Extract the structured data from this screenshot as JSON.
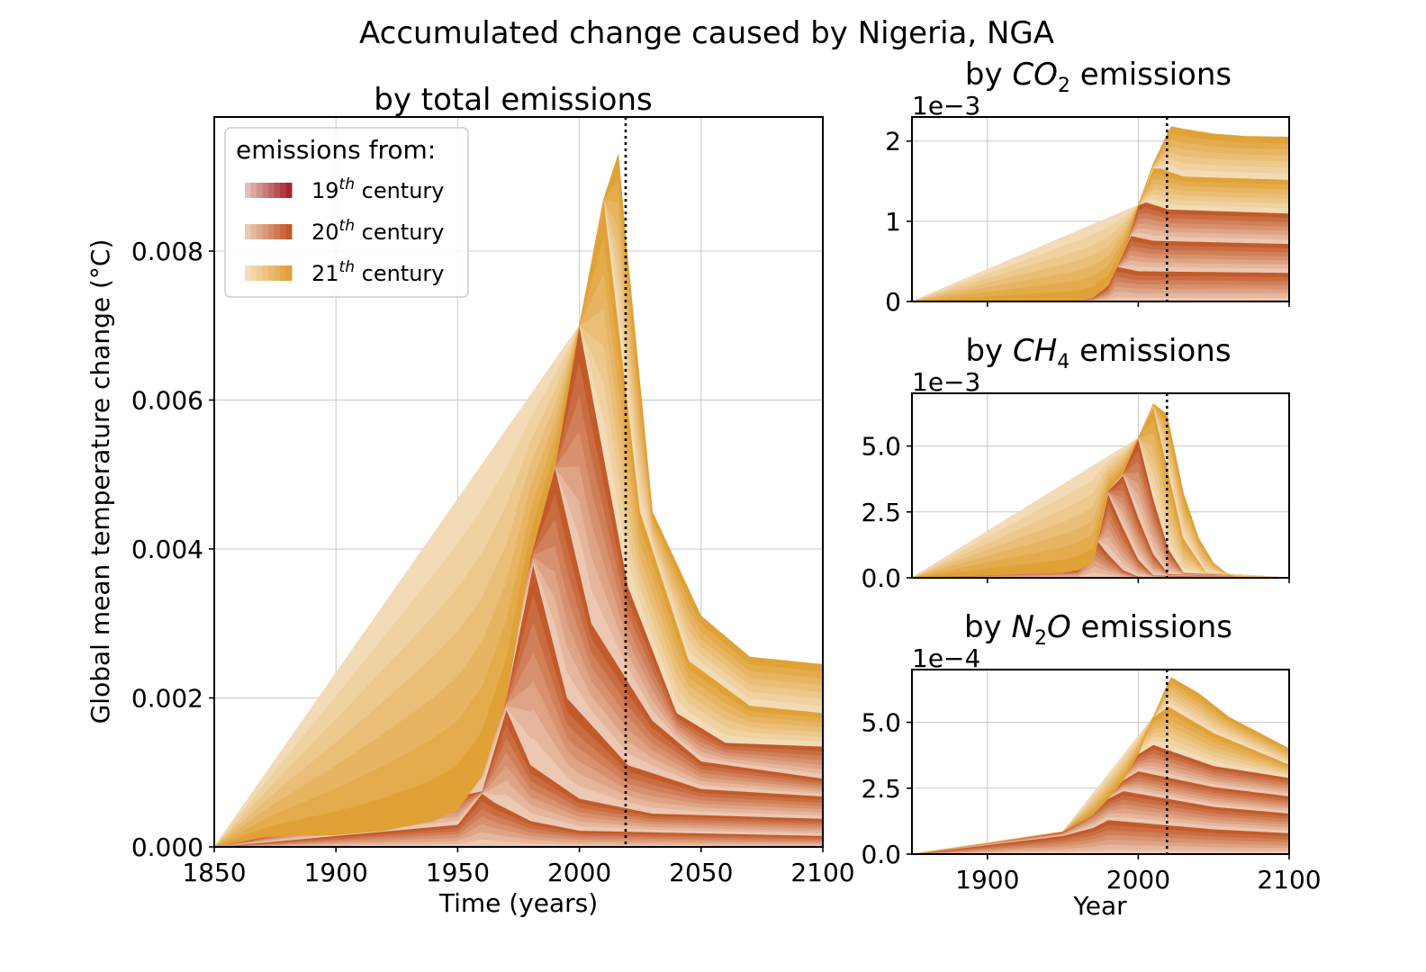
{
  "figure": {
    "title": "Accumulated change caused by Nigeria, NGA",
    "reference_year": 2019
  },
  "colors": {
    "century_19": "#a6262c",
    "century_20": "#c25a2a",
    "century_21": "#e0a137",
    "pale": "#fbf1e6",
    "frame": "#000000",
    "grid": "#c8c8c8"
  },
  "legend": {
    "title": "emissions from:",
    "placement": "upper-left",
    "items": [
      {
        "ordinal": "19",
        "sup": "th",
        "word": " century",
        "color": "#a6262c"
      },
      {
        "ordinal": "20",
        "sup": "th",
        "word": " century",
        "color": "#c25a2a"
      },
      {
        "ordinal": "21",
        "sup": "th",
        "word": " century",
        "color": "#e0a137"
      }
    ]
  },
  "chart_data": [
    {
      "id": "total",
      "type": "area",
      "stacked": true,
      "title": "by total emissions",
      "xlabel": "Time (years)",
      "ylabel": "Global mean temperature change (°C)",
      "xlim": [
        1850,
        2100
      ],
      "ylim": [
        0,
        0.0098
      ],
      "xticks": [
        1850,
        1900,
        1950,
        2000,
        2050,
        2100
      ],
      "xtick_labels": [
        "1850",
        "1900",
        "1950",
        "2000",
        "2050",
        "2100"
      ],
      "yticks": [
        0,
        0.002,
        0.004,
        0.006,
        0.008
      ],
      "ytick_labels": [
        "0.000",
        "0.002",
        "0.004",
        "0.006",
        "0.008"
      ],
      "grid": true,
      "envelope": {
        "x": [
          1850,
          1870,
          1880,
          1900,
          1920,
          1940,
          1950,
          1960,
          1970,
          1980,
          1990,
          2000,
          2010,
          2016,
          2019,
          2030,
          2050,
          2070,
          2100
        ],
        "y": [
          0,
          0.00013,
          0.00015,
          0.00016,
          0.00022,
          0.00035,
          0.0005,
          0.00095,
          0.002,
          0.0039,
          0.0051,
          0.007,
          0.0087,
          0.0093,
          0.0082,
          0.0045,
          0.0031,
          0.00255,
          0.00245
        ]
      },
      "boundaries": [
        {
          "color": "#c25a2a",
          "x": [
            1850,
            1950,
            1960,
            1965,
            1980,
            2000,
            2100
          ],
          "y": [
            0,
            0.0003,
            0.00072,
            0.0006,
            0.00035,
            0.00022,
            0.00015
          ]
        },
        {
          "color": "#c25a2a",
          "x": [
            1850,
            1960,
            1970,
            1980,
            2000,
            2030,
            2100
          ],
          "y": [
            0,
            0.00075,
            0.00185,
            0.0011,
            0.00065,
            0.00045,
            0.00038
          ]
        },
        {
          "color": "#c25a2a",
          "x": [
            1850,
            1970,
            1981,
            1995,
            2020,
            2050,
            2100
          ],
          "y": [
            0,
            0.002,
            0.0038,
            0.002,
            0.0011,
            0.00078,
            0.00068
          ]
        },
        {
          "color": "#c25a2a",
          "x": [
            1850,
            1980,
            1990,
            2005,
            2030,
            2050,
            2100
          ],
          "y": [
            0,
            0.0039,
            0.0051,
            0.003,
            0.0017,
            0.00115,
            0.00092
          ]
        },
        {
          "color": "#c25a2a",
          "x": [
            1850,
            1990,
            2000,
            2020,
            2040,
            2060,
            2100
          ],
          "y": [
            0,
            0.0051,
            0.007,
            0.0035,
            0.0018,
            0.0014,
            0.00135
          ]
        },
        {
          "color": "#e0a137",
          "x": [
            1850,
            2000,
            2010,
            2025,
            2045,
            2070,
            2100
          ],
          "y": [
            0,
            0.007,
            0.0087,
            0.0045,
            0.0025,
            0.0019,
            0.0018
          ]
        }
      ]
    },
    {
      "id": "co2",
      "type": "area",
      "stacked": true,
      "title_prefix": "by ",
      "species": "CO",
      "species_sub": "2",
      "title_suffix": " emissions",
      "scale_label": "1e−3",
      "scale": 0.001,
      "xlim": [
        1850,
        2100
      ],
      "ylim": [
        0,
        2.3
      ],
      "xticks": [
        1900,
        2000,
        2100
      ],
      "yticks": [
        0,
        1,
        2
      ],
      "ytick_labels": [
        "0",
        "1",
        "2"
      ],
      "grid": true,
      "envelope": {
        "x": [
          1850,
          1950,
          1960,
          1970,
          1980,
          1990,
          2000,
          2010,
          2020,
          2022,
          2030,
          2050,
          2070,
          2100
        ],
        "y": [
          0,
          0.003,
          0.01,
          0.05,
          0.2,
          0.6,
          1.2,
          1.72,
          2.12,
          2.18,
          2.15,
          2.09,
          2.06,
          2.05
        ]
      },
      "boundaries": [
        {
          "color": "#c25a2a",
          "x": [
            1850,
            1970,
            1980,
            1985,
            2000,
            2100
          ],
          "y": [
            0,
            0.05,
            0.2,
            0.44,
            0.38,
            0.36
          ]
        },
        {
          "color": "#c25a2a",
          "x": [
            1850,
            1980,
            1990,
            1995,
            2010,
            2100
          ],
          "y": [
            0,
            0.2,
            0.6,
            0.82,
            0.76,
            0.72
          ]
        },
        {
          "color": "#c25a2a",
          "x": [
            1850,
            1990,
            2000,
            2005,
            2020,
            2100
          ],
          "y": [
            0,
            0.6,
            1.2,
            1.24,
            1.15,
            1.1
          ]
        },
        {
          "color": "#e0a137",
          "x": [
            1850,
            2000,
            2010,
            2015,
            2030,
            2100
          ],
          "y": [
            0,
            1.2,
            1.66,
            1.66,
            1.56,
            1.52
          ]
        }
      ]
    },
    {
      "id": "ch4",
      "type": "area",
      "stacked": true,
      "title_prefix": "by ",
      "species": "CH",
      "species_sub": "4",
      "title_suffix": " emissions",
      "scale_label": "1e−3",
      "scale": 0.001,
      "xlim": [
        1850,
        2100
      ],
      "ylim": [
        0,
        7.0
      ],
      "xticks": [
        1900,
        2000,
        2100
      ],
      "yticks": [
        0,
        2.5,
        5.0
      ],
      "ytick_labels": [
        "0.0",
        "2.5",
        "5.0"
      ],
      "grid": true,
      "envelope": {
        "x": [
          1850,
          1900,
          1950,
          1960,
          1970,
          1980,
          1990,
          2000,
          2010,
          2019,
          2030,
          2040,
          2050,
          2060,
          2065,
          2100
        ],
        "y": [
          0,
          0.1,
          0.2,
          0.3,
          0.6,
          3.3,
          4.0,
          5.3,
          6.6,
          6.2,
          3.2,
          1.5,
          0.55,
          0.1,
          0,
          0
        ]
      },
      "boundaries": [
        {
          "color": "#c25a2a",
          "x": [
            1850,
            1960,
            1971,
            1980,
            1990,
            2000,
            2100
          ],
          "y": [
            0,
            0.3,
            1.55,
            0.9,
            0.3,
            0.05,
            0
          ]
        },
        {
          "color": "#c25a2a",
          "x": [
            1850,
            1970,
            1980,
            1990,
            2000,
            2010,
            2100
          ],
          "y": [
            0,
            0.6,
            3.2,
            1.9,
            0.7,
            0.1,
            0
          ]
        },
        {
          "color": "#c25a2a",
          "x": [
            1850,
            1980,
            1990,
            2000,
            2010,
            2020,
            2100
          ],
          "y": [
            0,
            3.3,
            3.9,
            2.3,
            0.9,
            0.15,
            0
          ]
        },
        {
          "color": "#c25a2a",
          "x": [
            1850,
            1990,
            2000,
            2010,
            2020,
            2030,
            2100
          ],
          "y": [
            0,
            4.0,
            5.3,
            3.0,
            1.1,
            0.2,
            0
          ]
        },
        {
          "color": "#e0a137",
          "x": [
            1850,
            2000,
            2010,
            2020,
            2030,
            2045,
            2100
          ],
          "y": [
            0,
            5.3,
            6.5,
            4.0,
            1.5,
            0.2,
            0
          ]
        }
      ]
    },
    {
      "id": "n2o",
      "type": "area",
      "stacked": true,
      "title_prefix": "by ",
      "species": "N",
      "species_sub": "2",
      "species_tail": "O",
      "title_suffix": " emissions",
      "scale_label": "1e−4",
      "scale": 0.0001,
      "xlim": [
        1850,
        2100
      ],
      "ylim": [
        0,
        7.0
      ],
      "xticks": [
        1900,
        2000,
        2100
      ],
      "xtick_labels": [
        "1900",
        "2000",
        "2100"
      ],
      "xlabel": "Year",
      "yticks": [
        0,
        2.5,
        5.0
      ],
      "ytick_labels": [
        "0.0",
        "2.5",
        "5.0"
      ],
      "grid": true,
      "envelope": {
        "x": [
          1850,
          1900,
          1950,
          1970,
          1980,
          1990,
          2000,
          2010,
          2019,
          2022,
          2040,
          2060,
          2080,
          2100
        ],
        "y": [
          0,
          0.4,
          0.85,
          1.5,
          2.1,
          2.8,
          3.8,
          5.2,
          6.4,
          6.7,
          6.1,
          5.2,
          4.6,
          4.0
        ]
      },
      "boundaries": [
        {
          "color": "#c25a2a",
          "x": [
            1850,
            1900,
            1950,
            1970,
            1980,
            2050,
            2100
          ],
          "y": [
            0,
            0.35,
            0.7,
            1.0,
            1.3,
            0.95,
            0.8
          ]
        },
        {
          "color": "#c25a2a",
          "x": [
            1850,
            1950,
            1980,
            1990,
            2050,
            2100
          ],
          "y": [
            0,
            0.85,
            2.1,
            2.4,
            1.8,
            1.55
          ]
        },
        {
          "color": "#c25a2a",
          "x": [
            1850,
            1950,
            1990,
            2000,
            2050,
            2100
          ],
          "y": [
            0,
            0.85,
            2.8,
            3.15,
            2.55,
            2.2
          ]
        },
        {
          "color": "#c25a2a",
          "x": [
            1850,
            1950,
            2000,
            2010,
            2050,
            2100
          ],
          "y": [
            0,
            0.85,
            3.8,
            4.15,
            3.35,
            2.9
          ]
        },
        {
          "color": "#e0a137",
          "x": [
            1850,
            1950,
            2010,
            2020,
            2050,
            2100
          ],
          "y": [
            0,
            0.85,
            5.2,
            5.6,
            4.6,
            3.4
          ]
        }
      ]
    }
  ]
}
